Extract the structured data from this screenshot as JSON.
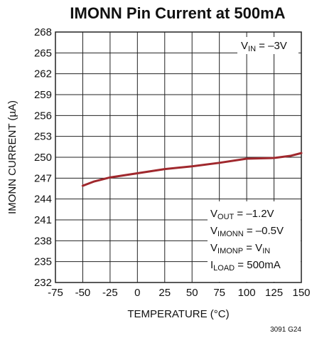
{
  "chart_data": {
    "type": "line",
    "title": "IMONN Pin Current at 500mA",
    "x_label": "TEMPERATURE (°C)",
    "y_label": "IMONN CURRENT (µA)",
    "footer": "3091 G24",
    "xlim": [
      -75,
      150
    ],
    "xticks": [
      -75,
      -50,
      -25,
      0,
      25,
      50,
      75,
      100,
      125,
      150
    ],
    "ylim": [
      232,
      268
    ],
    "yticks": [
      232,
      235,
      238,
      241,
      244,
      247,
      250,
      253,
      256,
      259,
      262,
      265,
      268
    ],
    "grid": true,
    "series": [
      {
        "color": "#a0282d",
        "x": [
          -50,
          -40,
          -25,
          0,
          25,
          50,
          75,
          100,
          125,
          140,
          150
        ],
        "values": [
          245.9,
          246.5,
          247.1,
          247.7,
          248.3,
          248.7,
          249.2,
          249.8,
          249.9,
          250.2,
          250.6
        ]
      }
    ],
    "annotation_top": [
      "V",
      "IN",
      " = –3V"
    ],
    "annotation_box": [
      [
        "V",
        "OUT",
        " = –1.2V"
      ],
      [
        "V",
        "IMONN",
        " = –0.5V"
      ],
      [
        "V",
        "IMONP",
        " = V",
        "IN",
        ""
      ],
      [
        "I",
        "LOAD",
        " = 500mA"
      ]
    ]
  }
}
